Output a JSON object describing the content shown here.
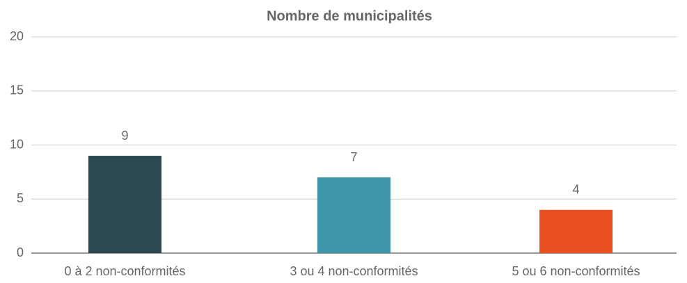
{
  "chart_data": {
    "type": "bar",
    "title": "Nombre de municipalités",
    "categories": [
      "0 à 2 non-conformités",
      "3 ou 4 non-conformités",
      "5 ou 6 non-conformités"
    ],
    "values": [
      9,
      7,
      4
    ],
    "colors": [
      "#2d4a50",
      "#3c96a8",
      "#e8511f"
    ],
    "ylim": [
      0,
      20
    ],
    "yticks": [
      0,
      5,
      10,
      15,
      20
    ],
    "grid": true
  }
}
